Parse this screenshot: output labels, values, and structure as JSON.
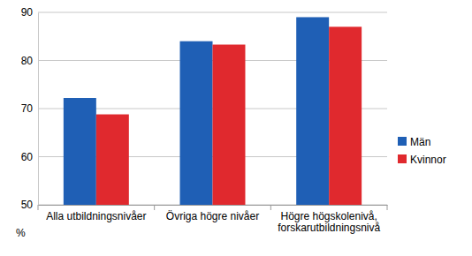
{
  "chart_data": {
    "type": "bar",
    "categories": [
      "Alla utbildningsnivåer",
      "Övriga högre nivåer",
      "Högre högskolenivå, forskarutbildningsnivå"
    ],
    "series": [
      {
        "name": "Män",
        "color": "#1f5fb5",
        "values": [
          72.2,
          84.0,
          89.0
        ]
      },
      {
        "name": "Kvinnor",
        "color": "#e0292e",
        "values": [
          68.8,
          83.3,
          87.0
        ]
      }
    ],
    "y_label": "%",
    "ylim": [
      50,
      90
    ],
    "yticks": [
      50,
      60,
      70,
      80,
      90
    ],
    "grid": true,
    "legend": "right"
  }
}
